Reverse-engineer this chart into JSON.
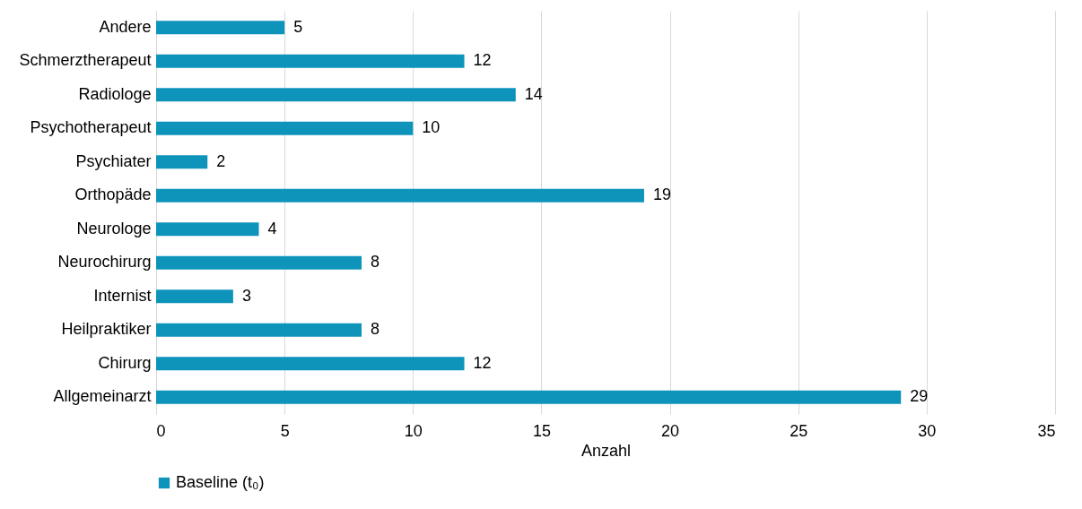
{
  "chart_data": {
    "type": "bar",
    "orientation": "horizontal",
    "xlabel": "Anzahl",
    "categories": [
      "Andere",
      "Schmerztherapeut",
      "Radiologe",
      "Psychotherapeut",
      "Psychiater",
      "Orthopäde",
      "Neurologe",
      "Neurochirurg",
      "Internist",
      "Heilpraktiker",
      "Chirurg",
      "Allgemeinarzt"
    ],
    "series": [
      {
        "name": "Baseline (t₀)",
        "color": "#0e93bb",
        "values": [
          5,
          12,
          14,
          10,
          2,
          19,
          4,
          8,
          3,
          8,
          12,
          29
        ]
      }
    ],
    "xlim": [
      0,
      35
    ],
    "xticks": [
      0,
      5,
      10,
      15,
      20,
      25,
      30,
      35
    ],
    "grid": "x",
    "legend": "bottom",
    "data_labels": true
  }
}
